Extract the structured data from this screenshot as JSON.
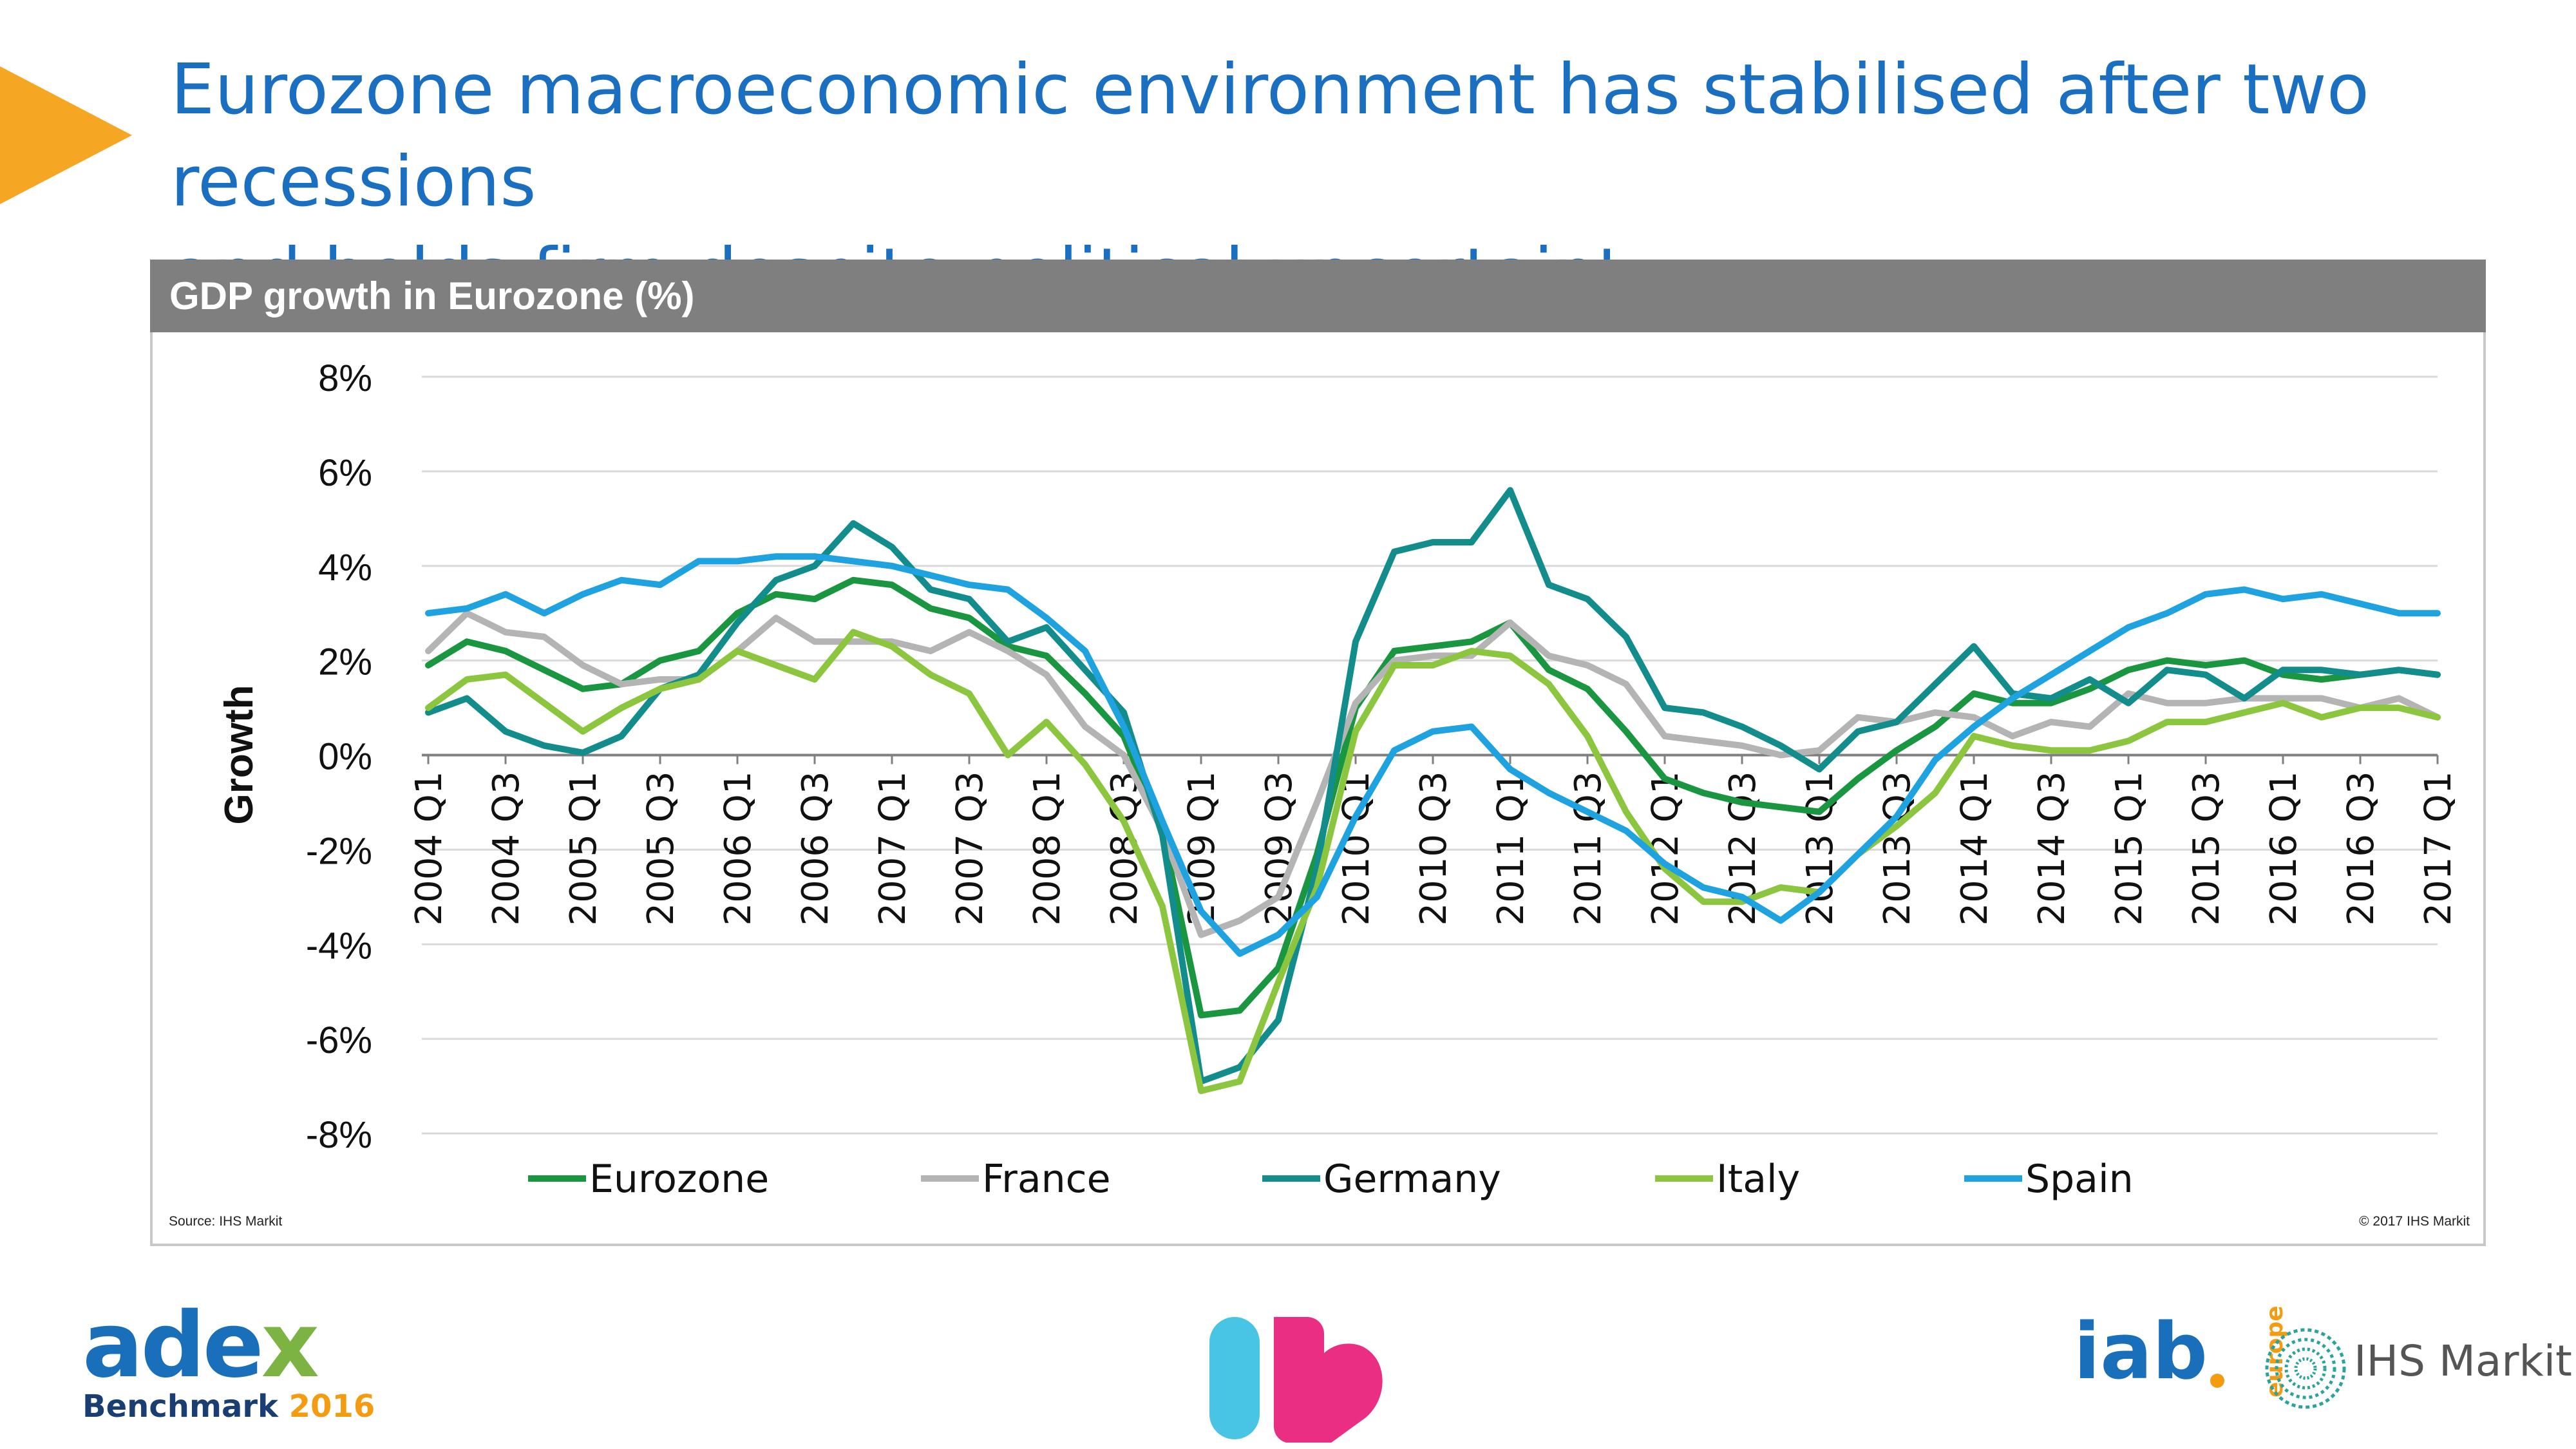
{
  "slide": {
    "title_line1": "Eurozone macroeconomic environment has stabilised after two recessions",
    "title_line2": "and holds firm despite political uncertainty",
    "arrow_color": "#f5a623"
  },
  "panel": {
    "header": "GDP growth in Eurozone (%)",
    "source": "Source: IHS Markit",
    "copyright": "© 2017 IHS Markit"
  },
  "logos": {
    "adex_word_a": "adex",
    "adex_word_b": "",
    "adex_sub": "Benchmark",
    "adex_year": "2016",
    "iab": "iab",
    "iab_region": "europe",
    "ihs": "IHS Markit"
  },
  "chart_data": {
    "type": "line",
    "title": "GDP growth in Eurozone (%)",
    "ylabel": "Growth",
    "xlabel": "",
    "ylim": [
      -8,
      8
    ],
    "yticks": [
      8,
      6,
      4,
      2,
      0,
      -2,
      -4,
      -6,
      -8
    ],
    "ytick_labels": [
      "8%",
      "6%",
      "4%",
      "2%",
      "0%",
      "-2%",
      "-4%",
      "-6%",
      "-8%"
    ],
    "grid": true,
    "legend": "bottom",
    "x_tick_labels": [
      "2004 Q1",
      "2004 Q3",
      "2005 Q1",
      "2005 Q3",
      "2006 Q1",
      "2006 Q3",
      "2007 Q1",
      "2007 Q3",
      "2008 Q1",
      "2008 Q3",
      "2009 Q1",
      "2009 Q3",
      "2010 Q1",
      "2010 Q3",
      "2011 Q1",
      "2011 Q3",
      "2012 Q1",
      "2012 Q3",
      "2013 Q1",
      "2013 Q3",
      "2014 Q1",
      "2014 Q3",
      "2015 Q1",
      "2015 Q3",
      "2016 Q1",
      "2016 Q3",
      "2017 Q1"
    ],
    "categories": [
      "2004 Q1",
      "2004 Q2",
      "2004 Q3",
      "2004 Q4",
      "2005 Q1",
      "2005 Q2",
      "2005 Q3",
      "2005 Q4",
      "2006 Q1",
      "2006 Q2",
      "2006 Q3",
      "2006 Q4",
      "2007 Q1",
      "2007 Q2",
      "2007 Q3",
      "2007 Q4",
      "2008 Q1",
      "2008 Q2",
      "2008 Q3",
      "2008 Q4",
      "2009 Q1",
      "2009 Q2",
      "2009 Q3",
      "2009 Q4",
      "2010 Q1",
      "2010 Q2",
      "2010 Q3",
      "2010 Q4",
      "2011 Q1",
      "2011 Q2",
      "2011 Q3",
      "2011 Q4",
      "2012 Q1",
      "2012 Q2",
      "2012 Q3",
      "2012 Q4",
      "2013 Q1",
      "2013 Q2",
      "2013 Q3",
      "2013 Q4",
      "2014 Q1",
      "2014 Q2",
      "2014 Q3",
      "2014 Q4",
      "2015 Q1",
      "2015 Q2",
      "2015 Q3",
      "2015 Q4",
      "2016 Q1",
      "2016 Q2",
      "2016 Q3",
      "2016 Q4",
      "2017 Q1"
    ],
    "series": [
      {
        "name": "Eurozone",
        "color": "#1a9641",
        "values": [
          1.9,
          2.4,
          2.2,
          1.8,
          1.4,
          1.5,
          2.0,
          2.2,
          3.0,
          3.4,
          3.3,
          3.7,
          3.6,
          3.1,
          2.9,
          2.3,
          2.1,
          1.3,
          0.4,
          -1.6,
          -5.5,
          -5.4,
          -4.5,
          -2.1,
          1.0,
          2.2,
          2.3,
          2.4,
          2.8,
          1.8,
          1.4,
          0.5,
          -0.5,
          -0.8,
          -1.0,
          -1.1,
          -1.2,
          -0.5,
          0.1,
          0.6,
          1.3,
          1.1,
          1.1,
          1.4,
          1.8,
          2.0,
          1.9,
          2.0,
          1.7,
          1.6,
          1.7,
          1.8,
          1.7
        ]
      },
      {
        "name": "France",
        "color": "#b4b4b4",
        "values": [
          2.2,
          3.0,
          2.6,
          2.5,
          1.9,
          1.5,
          1.6,
          1.6,
          2.2,
          2.9,
          2.4,
          2.4,
          2.4,
          2.2,
          2.6,
          2.2,
          1.7,
          0.6,
          0.0,
          -1.6,
          -3.8,
          -3.5,
          -3.0,
          -1.0,
          1.1,
          2.0,
          2.1,
          2.1,
          2.8,
          2.1,
          1.9,
          1.5,
          0.4,
          0.3,
          0.2,
          0.0,
          0.1,
          0.8,
          0.7,
          0.9,
          0.8,
          0.4,
          0.7,
          0.6,
          1.3,
          1.1,
          1.1,
          1.2,
          1.2,
          1.2,
          1.0,
          1.2,
          0.8
        ]
      },
      {
        "name": "Germany",
        "color": "#138c8c",
        "values": [
          0.9,
          1.2,
          0.5,
          0.2,
          0.05,
          0.4,
          1.4,
          1.7,
          2.8,
          3.7,
          4.0,
          4.9,
          4.4,
          3.5,
          3.3,
          2.4,
          2.7,
          1.8,
          0.9,
          -1.7,
          -6.9,
          -6.6,
          -5.6,
          -2.4,
          2.4,
          4.3,
          4.5,
          4.5,
          5.6,
          3.6,
          3.3,
          2.5,
          1.0,
          0.9,
          0.6,
          0.2,
          -0.3,
          0.5,
          0.7,
          1.5,
          2.3,
          1.3,
          1.2,
          1.6,
          1.1,
          1.8,
          1.7,
          1.2,
          1.8,
          1.8,
          1.7,
          1.8,
          1.7
        ]
      },
      {
        "name": "Italy",
        "color": "#8cc63f",
        "values": [
          1.0,
          1.6,
          1.7,
          1.1,
          0.5,
          1.0,
          1.4,
          1.6,
          2.2,
          1.9,
          1.6,
          2.6,
          2.3,
          1.7,
          1.3,
          0.0,
          0.7,
          -0.2,
          -1.4,
          -3.2,
          -7.1,
          -6.9,
          -4.8,
          -2.8,
          0.5,
          1.9,
          1.9,
          2.2,
          2.1,
          1.5,
          0.4,
          -1.2,
          -2.4,
          -3.1,
          -3.1,
          -2.8,
          -2.9,
          -2.1,
          -1.5,
          -0.8,
          0.4,
          0.2,
          0.1,
          0.1,
          0.3,
          0.7,
          0.7,
          0.9,
          1.1,
          0.8,
          1.0,
          1.0,
          0.8
        ]
      },
      {
        "name": "Spain",
        "color": "#1fa2e0",
        "values": [
          3.0,
          3.1,
          3.4,
          3.0,
          3.4,
          3.7,
          3.6,
          4.1,
          4.1,
          4.2,
          4.2,
          4.1,
          4.0,
          3.8,
          3.6,
          3.5,
          2.9,
          2.2,
          0.6,
          -1.4,
          -3.3,
          -4.2,
          -3.8,
          -3.0,
          -1.3,
          0.1,
          0.5,
          0.6,
          -0.3,
          -0.8,
          -1.2,
          -1.6,
          -2.3,
          -2.8,
          -3.0,
          -3.5,
          -2.9,
          -2.1,
          -1.3,
          -0.1,
          0.6,
          1.2,
          1.7,
          2.2,
          2.7,
          3.0,
          3.4,
          3.5,
          3.3,
          3.4,
          3.2,
          3.0,
          3.0
        ]
      }
    ]
  }
}
